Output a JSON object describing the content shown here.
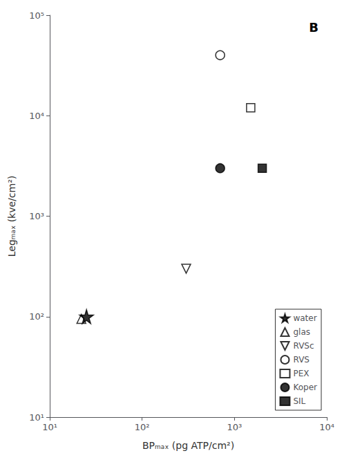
{
  "chart_data": {
    "type": "scatter",
    "log": true,
    "grid": false,
    "legend": "lower right",
    "xlabel": "BPₘₐₓ (pg ATP/cm²)",
    "ylabel": "Legₘₐₓ (kve/cm²)",
    "annotation": "B",
    "xlim": [
      10,
      10000
    ],
    "xticks": [
      {
        "value": 10,
        "label": "10¹"
      },
      {
        "value": 100,
        "label": "10²"
      },
      {
        "value": 1000,
        "label": "10³"
      },
      {
        "value": 10000,
        "label": "10⁴"
      }
    ],
    "ylim": [
      10,
      100000
    ],
    "yticks": [
      {
        "value": 10,
        "label": "10¹"
      },
      {
        "value": 100,
        "label": "10²"
      },
      {
        "value": 1000,
        "label": "10³"
      },
      {
        "value": 10000,
        "label": "10⁴"
      },
      {
        "value": 100000,
        "label": "10⁵"
      }
    ],
    "series": [
      {
        "name": "water",
        "color": "black",
        "marker": "star",
        "x": [
          25
        ],
        "values": [
          100
        ]
      },
      {
        "name": "glas",
        "color": "black",
        "marker": "triangle-up-open",
        "x": [
          22
        ],
        "values": [
          95
        ]
      },
      {
        "name": "RVSc",
        "color": "black",
        "marker": "triangle-down-open",
        "x": [
          300
        ],
        "values": [
          300
        ]
      },
      {
        "name": "RVS",
        "color": "black",
        "marker": "circle-open",
        "x": [
          700
        ],
        "values": [
          40000
        ]
      },
      {
        "name": "PEX",
        "color": "black",
        "marker": "square-open",
        "x": [
          1500
        ],
        "values": [
          12000
        ]
      },
      {
        "name": "Koper",
        "color": "black",
        "marker": "circle",
        "x": [
          700
        ],
        "values": [
          3000
        ]
      },
      {
        "name": "SIL",
        "color": "black",
        "marker": "square",
        "x": [
          2000
        ],
        "values": [
          3000
        ]
      }
    ]
  }
}
